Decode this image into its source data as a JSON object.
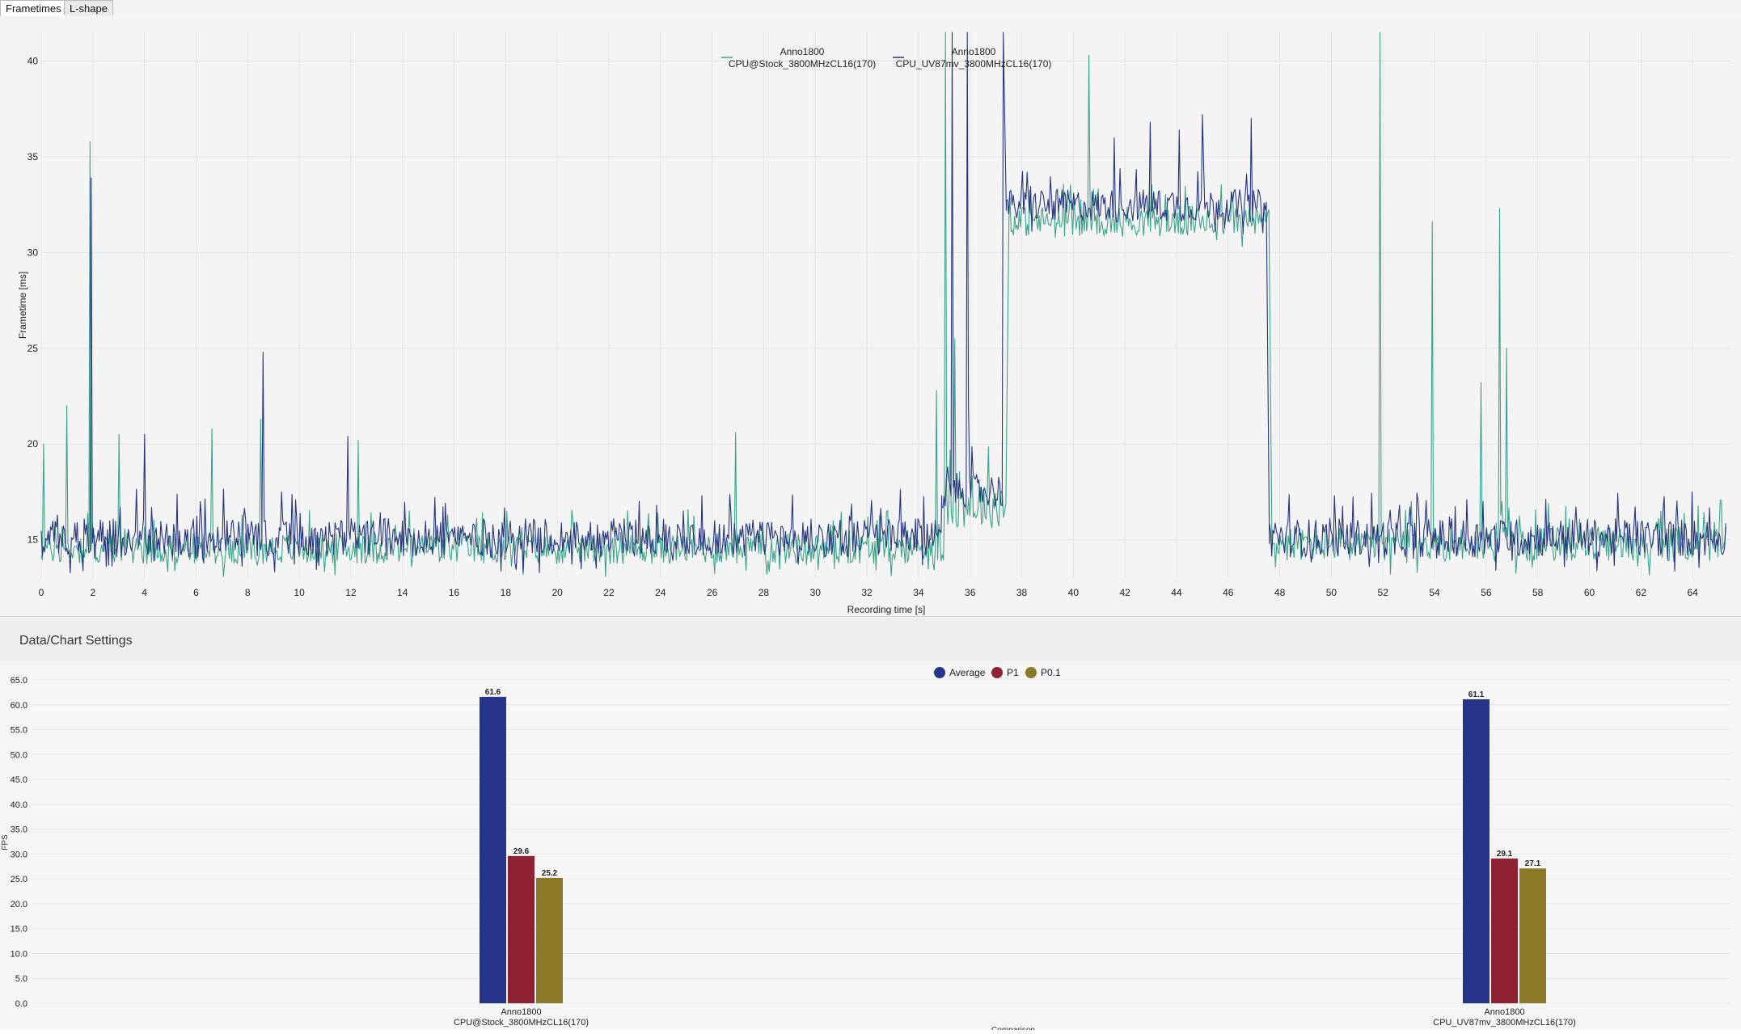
{
  "tabs": [
    {
      "label": "Frametimes",
      "active": true
    },
    {
      "label": "L-shape",
      "active": false
    }
  ],
  "settings_label": "Data/Chart Settings",
  "chart_data": [
    {
      "type": "line",
      "title": "",
      "xlabel": "Recording time [s]",
      "ylabel": "Frametime [ms]",
      "xlim": [
        0,
        65.5
      ],
      "ylim": [
        13,
        41.5
      ],
      "x_ticks": [
        0,
        2,
        4,
        6,
        8,
        10,
        12,
        14,
        16,
        18,
        20,
        22,
        24,
        26,
        28,
        30,
        32,
        34,
        36,
        38,
        40,
        42,
        44,
        46,
        48,
        50,
        52,
        54,
        56,
        58,
        60,
        62,
        64
      ],
      "y_ticks": [
        15,
        20,
        25,
        30,
        35,
        40
      ],
      "legend_position": "top-center",
      "grid": true,
      "series": [
        {
          "name": "Anno1800\nCPU@Stock_3800MHzCL16(170)",
          "color": "#3aa48a",
          "segments": [
            {
              "from": 0,
              "to": 35.0,
              "base": 14.3,
              "noise": 1.6
            },
            {
              "from": 35.0,
              "to": 37.4,
              "base": 16.5,
              "noise": 2.5
            },
            {
              "from": 37.5,
              "to": 47.6,
              "base": 31.4,
              "noise": 1.6
            },
            {
              "from": 47.7,
              "to": 65.3,
              "base": 14.5,
              "noise": 1.8
            }
          ],
          "spikes": [
            [
              0.1,
              20.0
            ],
            [
              1.0,
              22.0
            ],
            [
              1.9,
              35.8
            ],
            [
              3.0,
              20.5
            ],
            [
              6.6,
              20.8
            ],
            [
              8.5,
              21.3
            ],
            [
              12.3,
              20.2
            ],
            [
              26.9,
              20.6
            ],
            [
              34.7,
              22.8
            ],
            [
              35.05,
              41.5
            ],
            [
              35.4,
              25.5
            ],
            [
              37.45,
              41.5
            ],
            [
              40.6,
              40.3
            ],
            [
              51.9,
              41.5
            ],
            [
              53.9,
              31.6
            ],
            [
              55.8,
              23.2
            ],
            [
              56.5,
              32.3
            ],
            [
              56.8,
              25.0
            ]
          ]
        },
        {
          "name": "Anno1800\nCPU_UV87mv_3800MHzCL16(170)",
          "color": "#26357f",
          "segments": [
            {
              "from": 0,
              "to": 34.9,
              "base": 14.8,
              "noise": 2.0
            },
            {
              "from": 34.9,
              "to": 37.3,
              "base": 17.3,
              "noise": 1.8
            },
            {
              "from": 37.4,
              "to": 47.5,
              "base": 32.2,
              "noise": 1.7
            },
            {
              "from": 47.6,
              "to": 65.3,
              "base": 14.8,
              "noise": 2.0
            }
          ],
          "spikes": [
            [
              1.95,
              33.9
            ],
            [
              4.0,
              20.5
            ],
            [
              8.6,
              24.8
            ],
            [
              11.9,
              20.4
            ],
            [
              35.3,
              41.5
            ],
            [
              35.9,
              41.5
            ],
            [
              35.95,
              22.0
            ],
            [
              37.3,
              41.5
            ],
            [
              41.6,
              36.0
            ],
            [
              43.0,
              36.8
            ],
            [
              44.1,
              36.4
            ],
            [
              45.0,
              37.2
            ],
            [
              46.9,
              37.0
            ],
            [
              55.9,
              17.0
            ],
            [
              64.0,
              17.5
            ]
          ]
        }
      ]
    },
    {
      "type": "bar",
      "title": "",
      "xlabel": "Comparison",
      "ylabel": "FPS",
      "ylim": [
        0,
        65
      ],
      "y_ticks": [
        0.0,
        5.0,
        10.0,
        15.0,
        20.0,
        25.0,
        30.0,
        35.0,
        40.0,
        45.0,
        50.0,
        55.0,
        60.0,
        65.0
      ],
      "legend_position": "top-center",
      "categories": [
        "Anno1800\nCPU@Stock_3800MHzCL16(170)",
        "Anno1800\nCPU_UV87mv_3800MHzCL16(170)"
      ],
      "series": [
        {
          "name": "Average",
          "color": "#26358a",
          "values": [
            61.6,
            61.1
          ]
        },
        {
          "name": "P1",
          "color": "#8e2233",
          "values": [
            29.6,
            29.1
          ]
        },
        {
          "name": "P0.1",
          "color": "#8a7a28",
          "values": [
            25.2,
            27.1
          ]
        }
      ]
    }
  ]
}
